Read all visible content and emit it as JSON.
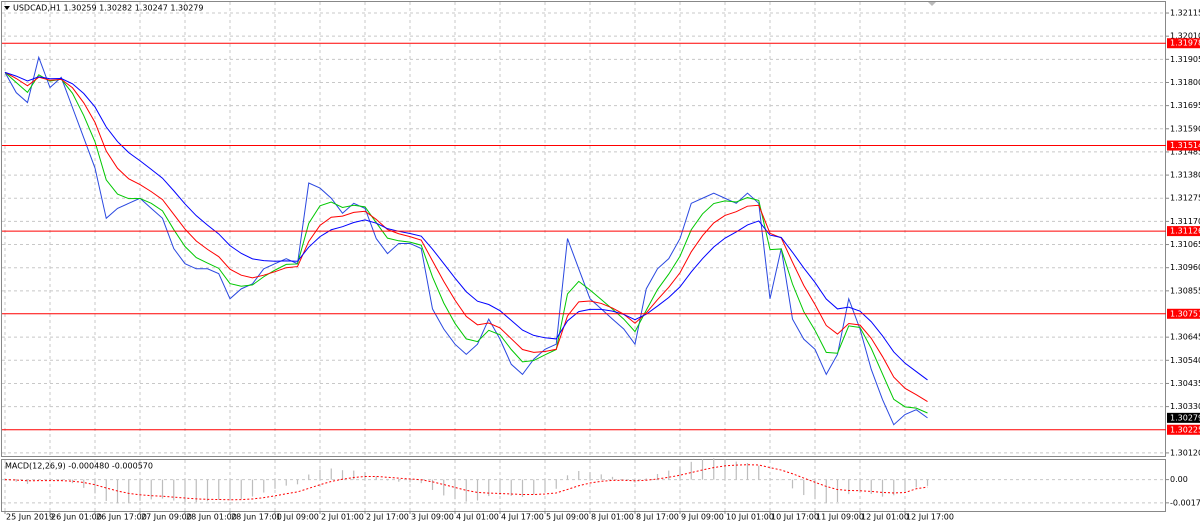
{
  "chart_data": [
    {
      "type": "line",
      "title": "USDCAD,H1  1.30259 1.30282 1.30247 1.30279",
      "categories": [
        "25 Jun 2019",
        null,
        null,
        null,
        "26 Jun 01:00",
        null,
        null,
        null,
        "26 Jun 17:00",
        null,
        null,
        null,
        "27 Jun 09:00",
        null,
        null,
        null,
        "28 Jun 01:00",
        null,
        null,
        null,
        "28 Jun 17:00",
        null,
        null,
        null,
        "1 Jul 09:00",
        null,
        null,
        null,
        "2 Jul 01:00",
        null,
        null,
        null,
        "2 Jul 17:00",
        null,
        null,
        null,
        "3 Jul 09:00",
        null,
        null,
        null,
        "4 Jul 01:00",
        null,
        null,
        null,
        "4 Jul 17:00",
        null,
        null,
        null,
        "5 Jul 09:00",
        null,
        null,
        null,
        "8 Jul 01:00",
        null,
        null,
        null,
        "8 Jul 17:00",
        null,
        null,
        null,
        "9 Jul 09:00",
        null,
        null,
        null,
        "10 Jul 01:00",
        null,
        null,
        null,
        "10 Jul 17:00",
        null,
        null,
        null,
        "11 Jul 09:00",
        null,
        null,
        null,
        "12 Jul 01:00",
        null,
        null,
        null,
        "12 Jul 17:00",
        null,
        null
      ],
      "series": [
        {
          "color": "#2a48e0",
          "values": [
            1.31846,
            1.31754,
            1.31709,
            1.31914,
            1.31777,
            1.31823,
            1.31686,
            1.31549,
            1.31412,
            1.31184,
            1.31229,
            1.31252,
            1.31275,
            1.31229,
            1.31184,
            1.31047,
            1.30978,
            1.30955,
            1.30955,
            1.30933,
            1.30819,
            1.30864,
            1.30887,
            1.30955,
            1.30978,
            1.31001,
            1.30978,
            1.31344,
            1.31321,
            1.31275,
            1.31207,
            1.31252,
            1.31229,
            1.31092,
            1.31024,
            1.3107,
            1.3107,
            1.31047,
            1.30773,
            1.30682,
            1.30613,
            1.30567,
            1.30613,
            1.30727,
            1.30636,
            1.30522,
            1.30476,
            1.30545,
            1.3059,
            1.30613,
            1.31092,
            1.30955,
            1.30819,
            1.30773,
            1.30727,
            1.30682,
            1.30613,
            1.30864,
            1.30955,
            1.31001,
            1.31092,
            1.31252,
            1.31275,
            1.31298,
            1.31275,
            1.31252,
            1.31298,
            1.31252,
            1.30819,
            1.31047,
            1.30727,
            1.30636,
            1.3059,
            1.30476,
            1.30567,
            1.30819,
            1.30682,
            1.30499,
            1.30362,
            1.30248,
            1.30294,
            1.30316,
            1.30279
          ]
        },
        {
          "color": "#00c800",
          "values": [
            1.31846,
            1.318,
            1.31755,
            1.31835,
            1.31806,
            1.31815,
            1.31751,
            1.3165,
            1.31531,
            1.31358,
            1.31294,
            1.31273,
            1.31274,
            1.31252,
            1.31218,
            1.31133,
            1.31056,
            1.31006,
            1.30981,
            1.30957,
            1.30888,
            1.30876,
            1.30882,
            1.30919,
            1.30949,
            1.30975,
            1.30977,
            1.31161,
            1.31241,
            1.31258,
            1.31233,
            1.31243,
            1.31236,
            1.31164,
            1.31094,
            1.31082,
            1.31076,
            1.31062,
            1.30918,
            1.308,
            1.30707,
            1.30637,
            1.30625,
            1.30676,
            1.30656,
            1.30589,
            1.30533,
            1.30539,
            1.30565,
            1.30589,
            1.30841,
            1.30898,
            1.30859,
            1.30816,
            1.30772,
            1.30727,
            1.3067,
            1.30767,
            1.30861,
            1.30931,
            1.31012,
            1.31132,
            1.31204,
            1.31251,
            1.31263,
            1.31258,
            1.31278,
            1.31265,
            1.31042,
            1.31045,
            1.30886,
            1.30761,
            1.30676,
            1.30576,
            1.30572,
            1.30696,
            1.30689,
            1.30594,
            1.30478,
            1.30363,
            1.30329,
            1.30323,
            1.30301
          ]
        },
        {
          "color": "#ff0000",
          "values": [
            1.31846,
            1.31818,
            1.31785,
            1.31824,
            1.3181,
            1.31814,
            1.31776,
            1.31708,
            1.31619,
            1.31489,
            1.31411,
            1.31363,
            1.31337,
            1.31305,
            1.31269,
            1.31202,
            1.31135,
            1.31081,
            1.31043,
            1.3101,
            1.30953,
            1.30926,
            1.30914,
            1.30926,
            1.30942,
            1.3096,
            1.30965,
            1.31079,
            1.31152,
            1.31189,
            1.31194,
            1.31211,
            1.31216,
            1.31179,
            1.31133,
            1.31114,
            1.31101,
            1.31085,
            1.30991,
            1.30898,
            1.30813,
            1.30739,
            1.30701,
            1.30709,
            1.30687,
            1.30638,
            1.30589,
            1.30576,
            1.3058,
            1.3059,
            1.30741,
            1.30805,
            1.30809,
            1.30798,
            1.30777,
            1.30749,
            1.30708,
            1.30755,
            1.30815,
            1.30871,
            1.30937,
            1.31032,
            1.31105,
            1.31163,
            1.31197,
            1.31214,
            1.31239,
            1.31243,
            1.31116,
            1.31095,
            1.30985,
            1.3088,
            1.30793,
            1.30698,
            1.30659,
            1.30707,
            1.307,
            1.3064,
            1.30557,
            1.30464,
            1.30413,
            1.30384,
            1.30353
          ]
        },
        {
          "color": "#0000ff",
          "values": [
            1.31846,
            1.31829,
            1.31807,
            1.31826,
            1.31817,
            1.31818,
            1.31794,
            1.3175,
            1.31689,
            1.31598,
            1.31532,
            1.31482,
            1.31445,
            1.31406,
            1.31366,
            1.31309,
            1.31249,
            1.31196,
            1.31153,
            1.31113,
            1.3106,
            1.31025,
            1.31,
            1.30992,
            1.30989,
            1.30991,
            1.30989,
            1.31053,
            1.31101,
            1.31132,
            1.31146,
            1.31165,
            1.31177,
            1.31162,
            1.31137,
            1.31125,
            1.31115,
            1.31103,
            1.31044,
            1.30979,
            1.30913,
            1.30851,
            1.30808,
            1.30793,
            1.30765,
            1.30721,
            1.30677,
            1.30653,
            1.30642,
            1.30637,
            1.30719,
            1.30761,
            1.30771,
            1.30771,
            1.30763,
            1.30748,
            1.30724,
            1.30749,
            1.30786,
            1.30825,
            1.30873,
            1.30941,
            1.31001,
            1.31054,
            1.31094,
            1.31122,
            1.31154,
            1.31172,
            1.31108,
            1.31097,
            1.3103,
            1.30959,
            1.30893,
            1.30818,
            1.30773,
            1.30781,
            1.30763,
            1.30715,
            1.30651,
            1.30578,
            1.30527,
            1.30489,
            1.30451
          ]
        }
      ],
      "ylim": [
        1.30106,
        1.32165
      ],
      "yticks": [
        1.32115,
        {
          "value": 1.3201,
          "label": "1.32010"
        },
        1.31905,
        {
          "value": 1.318,
          "label": "1.31800"
        },
        1.31695,
        {
          "value": 1.3159,
          "label": "1.31590"
        },
        1.31485,
        {
          "value": 1.3138,
          "label": "1.31380"
        },
        1.31275,
        {
          "value": 1.3117,
          "label": "1.31170"
        },
        1.31065,
        {
          "value": 1.3096,
          "label": "1.30960"
        },
        1.30855,
        1.30645,
        {
          "value": 1.3054,
          "label": "1.30540"
        },
        1.30435,
        {
          "value": 1.3033,
          "label": "1.30330"
        },
        {
          "value": 1.3012,
          "label": "1.30120"
        }
      ],
      "hlines": [
        1.31978,
        1.31514,
        1.31126,
        1.30751,
        1.30225
      ],
      "hline_color": "#ff0000",
      "show_last_price": true,
      "grid": true
    },
    {
      "type": "bar",
      "title": "MACD(12,26,9) -0.000480 -0.000570",
      "series": [
        {
          "type": "bar",
          "color": "#bdbdbd",
          "values": [
            0,
            -0.00016,
            -0.00033,
            -3e-05,
            -0.0001,
            -6e-05,
            -0.00027,
            -0.00063,
            -0.00105,
            -0.00163,
            -0.00181,
            -0.00178,
            -0.00162,
            -0.00151,
            -0.00145,
            -0.0016,
            -0.00171,
            -0.00172,
            -0.00165,
            -0.00154,
            -0.0016,
            -0.00148,
            -0.00129,
            -0.00099,
            -0.0007,
            -0.00046,
            -0.00036,
            0.00039,
            0.00076,
            0.00085,
            0.00072,
            0.00069,
            0.00058,
            0.00025,
            -6e-05,
            -0.00016,
            -0.00021,
            -0.00027,
            -0.00079,
            -0.00121,
            -0.0015,
            -0.00168,
            -0.0016,
            -0.00126,
            -0.00117,
            -0.00124,
            -0.00132,
            -0.00115,
            -0.00093,
            -0.0007,
            0.00033,
            0.00066,
            0.00057,
            0.0004,
            0.00021,
            1e-05,
            -0.00024,
            9e-05,
            0.00043,
            0.00069,
            0.00096,
            0.00136,
            0.00156,
            0.00163,
            0.00154,
            0.00138,
            0.00127,
            0.00106,
            0.00012,
            -3e-05,
            -0.00067,
            -0.00118,
            -0.0015,
            -0.0018,
            -0.00171,
            -0.00111,
            -0.00094,
            -0.0011,
            -0.0013,
            -0.0012,
            -0.00085,
            -0.0006,
            -0.00048
          ]
        },
        {
          "type": "line",
          "line_style": "dashed",
          "color": "#ff0000",
          "values": [
            0,
            -3e-05,
            -9e-05,
            -8e-05,
            -8e-05,
            -8e-05,
            -0.00012,
            -0.00022,
            -0.00039,
            -0.00064,
            -0.00087,
            -0.00105,
            -0.00116,
            -0.00123,
            -0.00127,
            -0.00134,
            -0.00141,
            -0.00147,
            -0.00151,
            -0.00152,
            -0.00154,
            -0.00153,
            -0.00148,
            -0.00138,
            -0.00124,
            -0.00108,
            -0.00094,
            -0.00067,
            -0.00039,
            -0.00014,
            3e-05,
            0.00016,
            0.00024,
            0.00024,
            0.00018,
            0.00011,
            5e-05,
            -1e-05,
            -0.00017,
            -0.00038,
            -0.0006,
            -0.00082,
            -0.00098,
            -0.00103,
            -0.00106,
            -0.0011,
            -0.00114,
            -0.00114,
            -0.0011,
            -0.00102,
            -0.00075,
            -0.00047,
            -0.00026,
            -0.00013,
            -6e-05,
            -5e-05,
            -9e-05,
            -5e-05,
            5e-05,
            0.00018,
            0.00034,
            0.00054,
            0.00074,
            0.00092,
            0.00105,
            0.00111,
            0.00114,
            0.00112,
            0.00092,
            0.00073,
            0.00045,
            0.00012,
            -0.0002,
            -0.00052,
            -0.00076,
            -0.00083,
            -0.00085,
            -0.0009,
            -0.00098,
            -0.00102,
            -0.00099,
            -0.0007,
            -0.00057
          ]
        }
      ],
      "ylim": [
        -0.0024,
        0.0015
      ],
      "yticks": [
        {
          "value": 0,
          "label": "0.00"
        },
        -0.001777
      ],
      "grid": true
    }
  ]
}
